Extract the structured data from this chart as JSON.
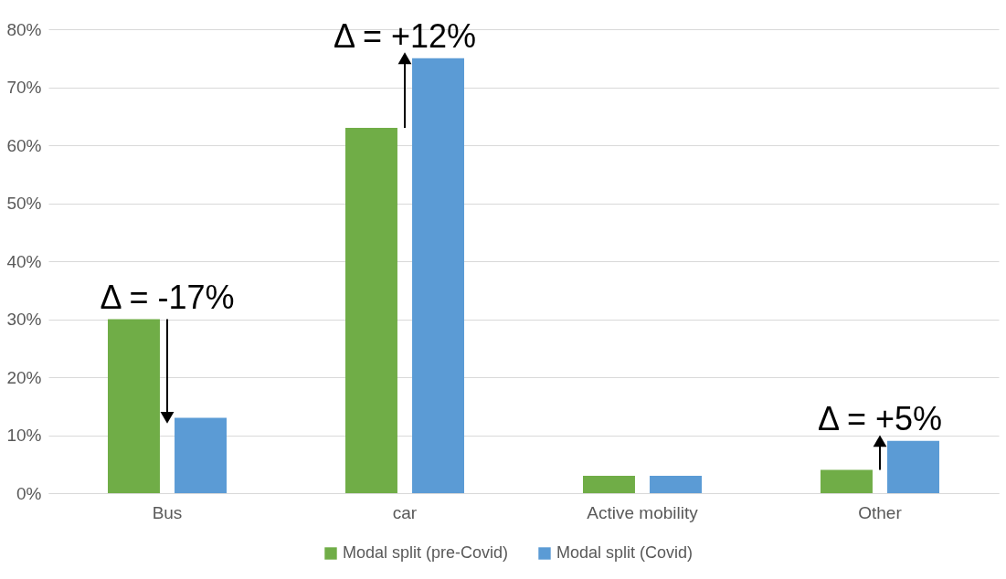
{
  "chart_data": {
    "type": "bar",
    "categories": [
      "Bus",
      "car",
      "Active mobility",
      "Other"
    ],
    "series": [
      {
        "name": "Modal split (pre-Covid)",
        "color": "#70ad47",
        "values": [
          30,
          63,
          3,
          4
        ]
      },
      {
        "name": "Modal split (Covid)",
        "color": "#5b9bd5",
        "values": [
          13,
          75,
          3,
          9
        ]
      }
    ],
    "ylim": [
      0,
      80
    ],
    "yticks": [
      {
        "value": 0,
        "label": "0%"
      },
      {
        "value": 10,
        "label": "10%"
      },
      {
        "value": 20,
        "label": "20%"
      },
      {
        "value": 30,
        "label": "30%"
      },
      {
        "value": 40,
        "label": "40%"
      },
      {
        "value": 50,
        "label": "50%"
      },
      {
        "value": 60,
        "label": "60%"
      },
      {
        "value": 70,
        "label": "70%"
      },
      {
        "value": 80,
        "label": "80%"
      }
    ],
    "grid": "y",
    "legend": "bottom",
    "annotations": [
      {
        "text": "Δ = -17%",
        "x": "Bus",
        "y": 13
      },
      {
        "text": "Δ = +12%",
        "x": "car",
        "y": 75
      },
      {
        "text": "Δ = +5%",
        "x": "Other",
        "y": 9
      }
    ]
  }
}
